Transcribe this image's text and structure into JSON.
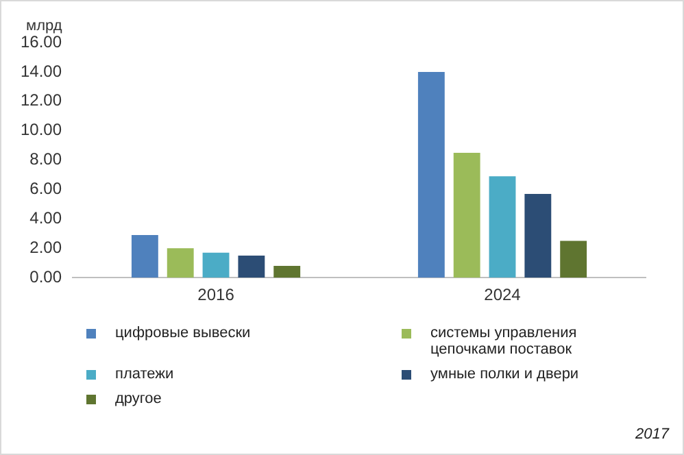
{
  "chart_data": {
    "type": "bar",
    "ylabel": "млрд",
    "categories": [
      "2016",
      "2024"
    ],
    "series": [
      {
        "name": "цифровые вывески",
        "color": "#4f81bd",
        "values": [
          2.9,
          14.0
        ]
      },
      {
        "name": "системы управления цепочками поставок",
        "color": "#9bbb59",
        "values": [
          2.0,
          8.5
        ]
      },
      {
        "name": "платежи",
        "color": "#4bacc6",
        "values": [
          1.7,
          6.9
        ]
      },
      {
        "name": "умные полки и двери",
        "color": "#2c4d75",
        "values": [
          1.5,
          5.7
        ]
      },
      {
        "name": "другое",
        "color": "#5f7530",
        "values": [
          0.8,
          2.5
        ]
      }
    ],
    "ylim": [
      0,
      16
    ],
    "yticks": [
      {
        "value": 0,
        "label": "0.00"
      },
      {
        "value": 2,
        "label": "2.00"
      },
      {
        "value": 4,
        "label": "4.00"
      },
      {
        "value": 6,
        "label": "6.00"
      },
      {
        "value": 8,
        "label": "8.00"
      },
      {
        "value": 10,
        "label": "10.00"
      },
      {
        "value": 12,
        "label": "12.00"
      },
      {
        "value": 14,
        "label": "14.00"
      },
      {
        "value": 16,
        "label": "16.00"
      }
    ],
    "grid": false,
    "legend": "bottom",
    "annotations": [
      "2017"
    ]
  }
}
